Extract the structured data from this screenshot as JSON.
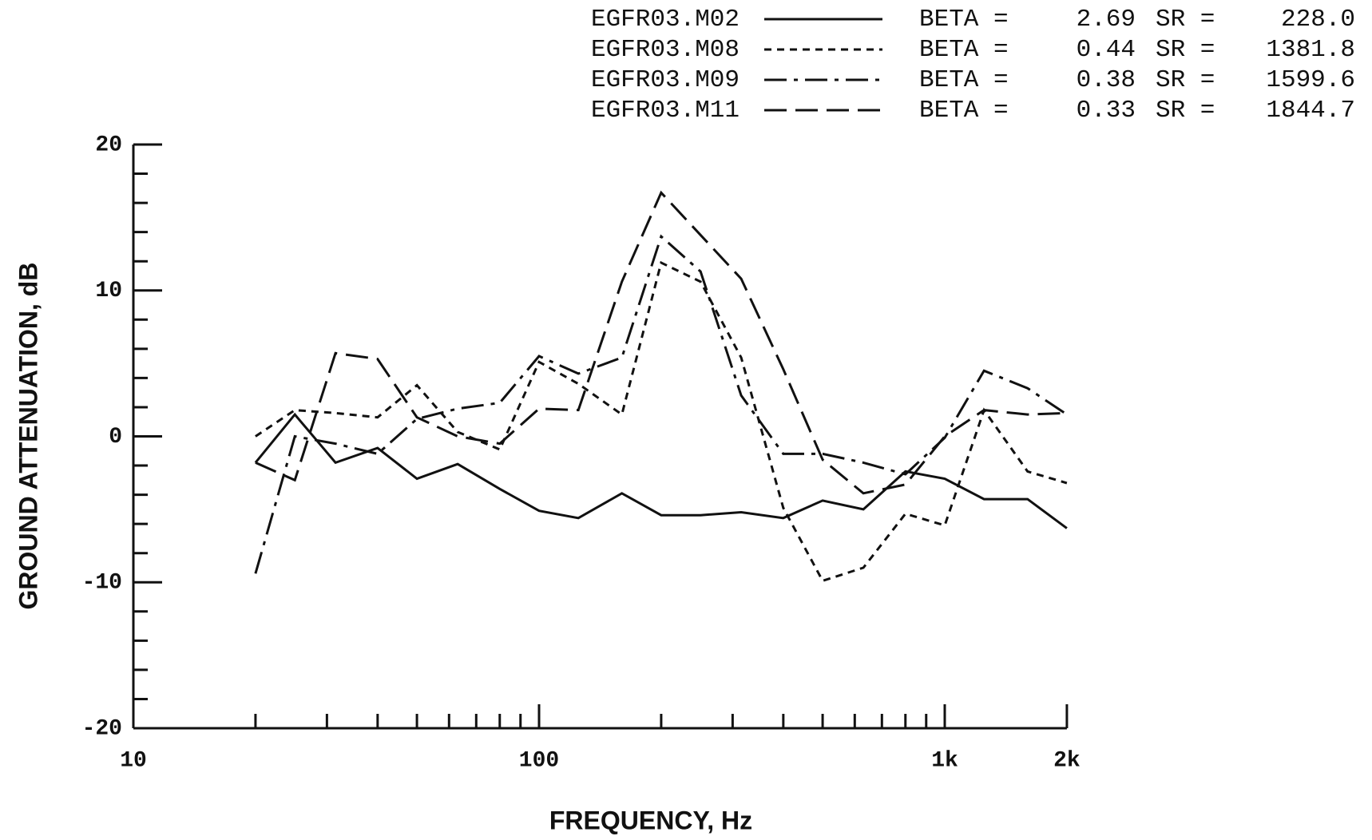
{
  "chart_data": {
    "type": "line",
    "x_label": "FREQUENCY, Hz",
    "y_label": "GROUND ATTENUATION, dB",
    "x_scale": "log",
    "beta_label": "BETA =",
    "sr_label": "SR =",
    "x": [
      20,
      25,
      31.5,
      40,
      50,
      63,
      80,
      100,
      125,
      160,
      200,
      250,
      315,
      400,
      500,
      630,
      800,
      1000,
      1250,
      1600,
      2000
    ],
    "series": [
      {
        "name": "EGFR03.M02",
        "color": "#111111",
        "dash": "solid",
        "beta": 2.69,
        "sr": {
          "value": 228,
          "label": "228.0"
        },
        "values": [
          -1.8,
          1.5,
          -1.8,
          -0.8,
          -2.9,
          -1.9,
          -3.6,
          -5.1,
          -5.6,
          -3.9,
          -5.4,
          -5.4,
          -5.2,
          -5.6,
          -4.4,
          -5.0,
          -2.4,
          -2.9,
          -4.3,
          -4.3,
          -6.3
        ]
      },
      {
        "name": "EGFR03.M08",
        "color": "#111111",
        "dash": "short-dash",
        "beta": 0.44,
        "sr": 1381.8,
        "values": [
          0,
          1.8,
          1.6,
          1.3,
          3.5,
          0.3,
          -0.9,
          5.1,
          3.6,
          1.5,
          11.9,
          10.6,
          5.4,
          -4.9,
          -9.9,
          -9.0,
          -5.3,
          -6.1,
          1.8,
          -2.4,
          -3.2
        ]
      },
      {
        "name": "EGFR03.M09",
        "color": "#111111",
        "dash": "dash-dot",
        "beta": 0.38,
        "sr": 1599.6,
        "values": [
          -9.4,
          0,
          -0.5,
          -1.2,
          1.2,
          1.9,
          2.3,
          5.5,
          4.3,
          5.4,
          13.7,
          11.3,
          2.8,
          -1.2,
          -1.2,
          -1.8,
          -2.6,
          -0.1,
          4.5,
          3.3,
          1.5
        ]
      },
      {
        "name": "EGFR03.M11",
        "color": "#111111",
        "dash": "long-dash",
        "beta": 0.33,
        "sr": 1844.7,
        "values": [
          -1.8,
          -3.0,
          5.7,
          5.3,
          1.3,
          0,
          -0.5,
          1.9,
          1.8,
          10.6,
          16.7,
          13.8,
          10.8,
          4.6,
          -1.6,
          -3.9,
          -3.3,
          0,
          1.8,
          1.5,
          1.6
        ]
      }
    ],
    "xlim": [
      10,
      2000
    ],
    "xticks": [
      10,
      100,
      {
        "value": 1000,
        "label": "1k"
      },
      {
        "value": 2000,
        "label": "2k"
      }
    ],
    "xminor_ticks": [
      20,
      30,
      40,
      50,
      60,
      70,
      80,
      90,
      200,
      300,
      400,
      500,
      600,
      700,
      800,
      900
    ],
    "ylim": [
      -20,
      20
    ],
    "yticks": [
      -20,
      -10,
      0,
      10,
      20
    ],
    "yminor_ticks": [
      -18,
      -16,
      -14,
      -12,
      -8,
      -6,
      -4,
      -2,
      2,
      4,
      6,
      8,
      12,
      14,
      16,
      18
    ],
    "grid": false
  }
}
